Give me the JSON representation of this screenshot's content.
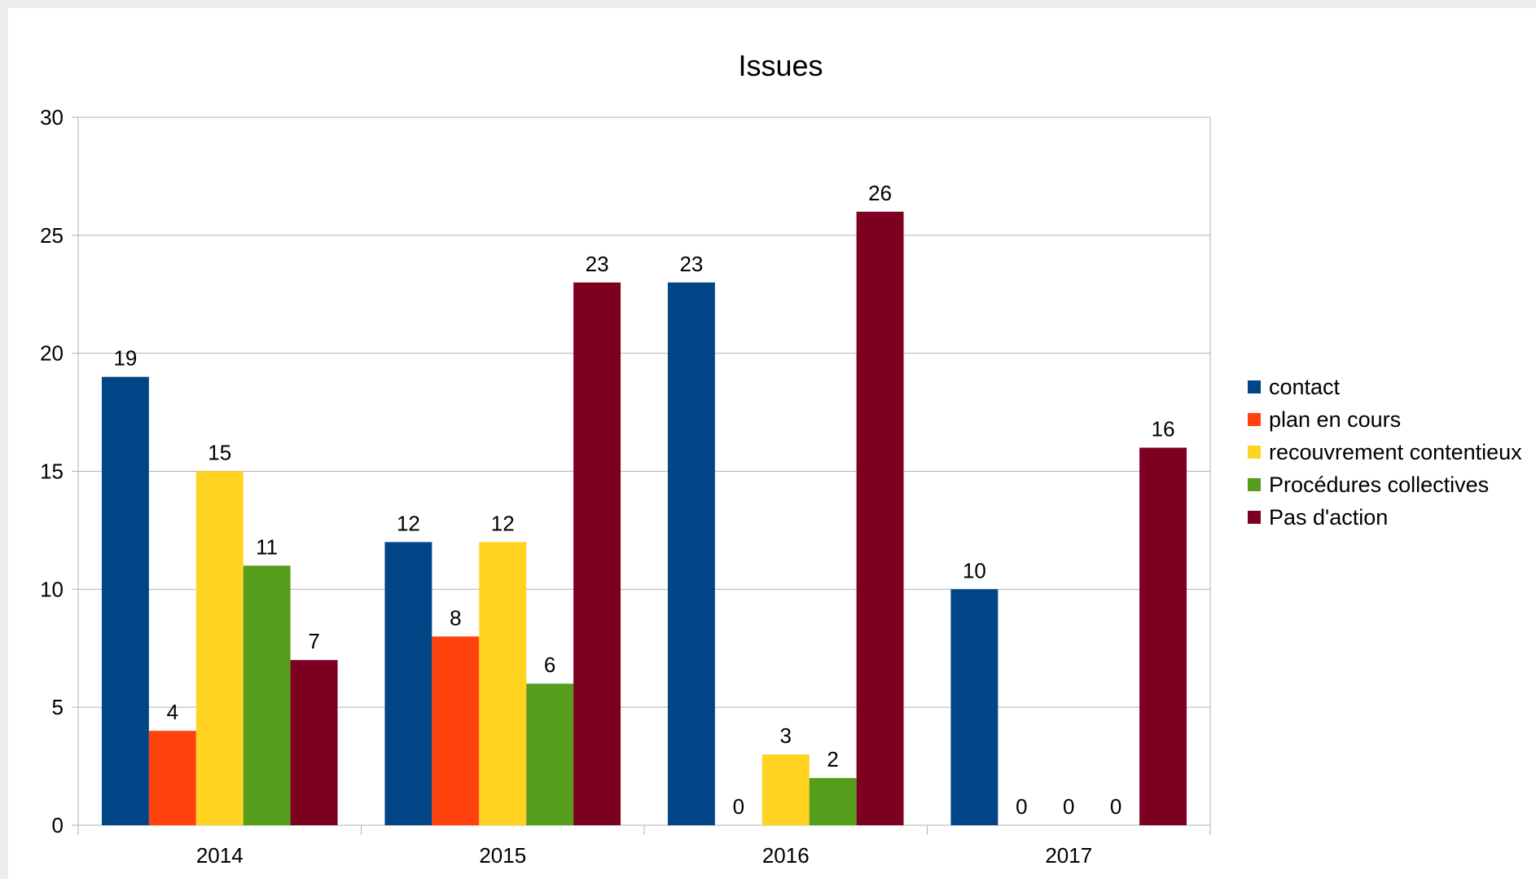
{
  "chart_data": {
    "type": "bar",
    "title": "Issues",
    "xlabel": "",
    "ylabel": "",
    "categories": [
      "2014",
      "2015",
      "2016",
      "2017"
    ],
    "ylim": [
      0,
      30
    ],
    "yticks": [
      0,
      5,
      10,
      15,
      20,
      25,
      30
    ],
    "grid": true,
    "legend_position": "right",
    "series": [
      {
        "name": "contact",
        "color": "#004586",
        "values": [
          19,
          12,
          23,
          10
        ]
      },
      {
        "name": "plan en cours",
        "color": "#ff420e",
        "values": [
          4,
          8,
          0,
          0
        ]
      },
      {
        "name": "recouvrement contentieux",
        "color": "#ffd320",
        "values": [
          15,
          12,
          3,
          0
        ]
      },
      {
        "name": "Procédures collectives",
        "color": "#579d1c",
        "values": [
          11,
          6,
          2,
          0
        ]
      },
      {
        "name": "Pas d'action",
        "color": "#7e0021",
        "values": [
          7,
          23,
          26,
          16
        ]
      }
    ]
  }
}
